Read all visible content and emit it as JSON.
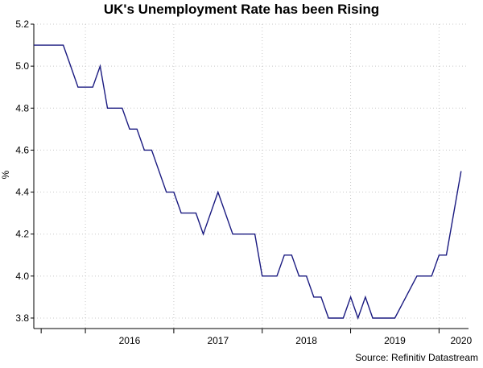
{
  "chart_data": {
    "type": "line",
    "title": "UK's Unemployment Rate has been Rising",
    "ylabel": "%",
    "xlabel": "",
    "source": "Source: Refinitiv Datastream",
    "ylim": [
      3.75,
      5.2
    ],
    "xlim": [
      "2015-06",
      "2020-05"
    ],
    "y_ticks": [
      3.8,
      4.0,
      4.2,
      4.4,
      4.6,
      4.8,
      5.0,
      5.2
    ],
    "y_tick_labels": [
      "3.8",
      "4.0",
      "4.2",
      "4.4",
      "4.6",
      "4.8",
      "5.0",
      "5.2"
    ],
    "x_year_labels": [
      {
        "label": "2016",
        "at": "2016-07"
      },
      {
        "label": "2017",
        "at": "2017-07"
      },
      {
        "label": "2018",
        "at": "2018-07"
      },
      {
        "label": "2019",
        "at": "2019-07"
      },
      {
        "label": "2020",
        "at": "2020-04"
      }
    ],
    "x_year_ticks": [
      "2016-01",
      "2017-01",
      "2018-01",
      "2019-01",
      "2020-01"
    ],
    "grid": true,
    "line_color": "#1a1a80",
    "series": [
      {
        "values": [
          {
            "x": "2015-06",
            "y": 5.1
          },
          {
            "x": "2015-10",
            "y": 5.1
          },
          {
            "x": "2015-11",
            "y": 5.0
          },
          {
            "x": "2015-12",
            "y": 4.9
          },
          {
            "x": "2016-02",
            "y": 4.9
          },
          {
            "x": "2016-03",
            "y": 5.0
          },
          {
            "x": "2016-04",
            "y": 4.8
          },
          {
            "x": "2016-06",
            "y": 4.8
          },
          {
            "x": "2016-07",
            "y": 4.7
          },
          {
            "x": "2016-08",
            "y": 4.7
          },
          {
            "x": "2016-09",
            "y": 4.6
          },
          {
            "x": "2016-10",
            "y": 4.6
          },
          {
            "x": "2016-12",
            "y": 4.4
          },
          {
            "x": "2017-01",
            "y": 4.4
          },
          {
            "x": "2017-02",
            "y": 4.3
          },
          {
            "x": "2017-04",
            "y": 4.3
          },
          {
            "x": "2017-05",
            "y": 4.2
          },
          {
            "x": "2017-07",
            "y": 4.4
          },
          {
            "x": "2017-09",
            "y": 4.2
          },
          {
            "x": "2017-12",
            "y": 4.2
          },
          {
            "x": "2018-01",
            "y": 4.0
          },
          {
            "x": "2018-03",
            "y": 4.0
          },
          {
            "x": "2018-04",
            "y": 4.1
          },
          {
            "x": "2018-05",
            "y": 4.1
          },
          {
            "x": "2018-06",
            "y": 4.0
          },
          {
            "x": "2018-07",
            "y": 4.0
          },
          {
            "x": "2018-08",
            "y": 3.9
          },
          {
            "x": "2018-09",
            "y": 3.9
          },
          {
            "x": "2018-10",
            "y": 3.8
          },
          {
            "x": "2018-12",
            "y": 3.8
          },
          {
            "x": "2019-01",
            "y": 3.9
          },
          {
            "x": "2019-02",
            "y": 3.8
          },
          {
            "x": "2019-03",
            "y": 3.9
          },
          {
            "x": "2019-04",
            "y": 3.8
          },
          {
            "x": "2019-07",
            "y": 3.8
          },
          {
            "x": "2019-10",
            "y": 4.0
          },
          {
            "x": "2019-12",
            "y": 4.0
          },
          {
            "x": "2020-01",
            "y": 4.1
          },
          {
            "x": "2020-02",
            "y": 4.1
          },
          {
            "x": "2020-04",
            "y": 4.5
          }
        ]
      }
    ]
  }
}
